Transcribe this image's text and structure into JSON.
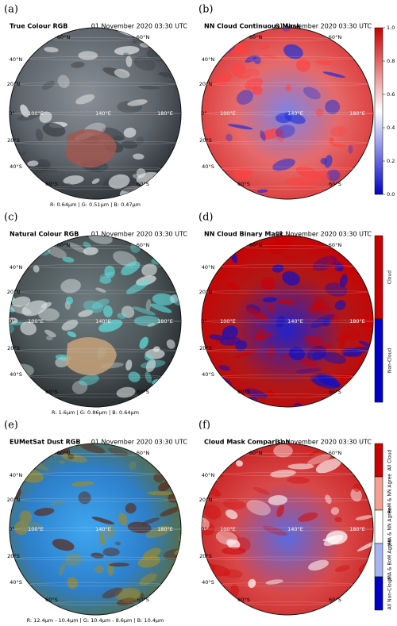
{
  "panels": [
    {
      "letter": "(a)",
      "title": "True Colour RGB",
      "date": "01 November 2020 03:30 UTC",
      "caption": "R: 0.64μm | G: 0.51μm | B: 0.47μm",
      "lat_labels": [
        "60°N",
        "60°N",
        "40°N",
        "20°N",
        "0°",
        "20°S",
        "40°S",
        "60°S",
        "60°S"
      ],
      "lon_labels": [
        "100°E",
        "140°E",
        "180°E"
      ]
    },
    {
      "letter": "(b)",
      "title": "NN Cloud Continuous Mask",
      "date": "01 November 2020 03:30 UTC",
      "lat_labels": [
        "60°N",
        "60°N",
        "40°N",
        "20°N",
        "0°",
        "20°S",
        "40°S",
        "60°S",
        "60°S"
      ],
      "lon_labels": [
        "100°E",
        "140°E",
        "180°E"
      ],
      "colorbar_ticks": [
        {
          "value": 0,
          "label": "0.0"
        },
        {
          "value": 0.2,
          "label": "0.2"
        },
        {
          "value": 0.4,
          "label": "0.4"
        },
        {
          "value": 0.6,
          "label": "0.6"
        },
        {
          "value": 0.8,
          "label": "0.8"
        },
        {
          "value": 1,
          "label": "1.0"
        }
      ]
    },
    {
      "letter": "(c)",
      "title": "Natural Colour RGB",
      "date": "01 November 2020 03:30 UTC",
      "caption": "R: 1.6μm | G: 0.86μm | B: 0.64μm",
      "lat_labels": [
        "60°N",
        "60°N",
        "40°N",
        "20°N",
        "0°",
        "20°S",
        "40°S",
        "60°S",
        "60°S"
      ],
      "lon_labels": [
        "100°E",
        "140°E",
        "180°E"
      ]
    },
    {
      "letter": "(d)",
      "title": "NN Cloud Binary Mask",
      "date": "01 November 2020 03:30 UTC",
      "lat_labels": [
        "60°N",
        "60°N",
        "40°N",
        "20°N",
        "0°",
        "20°S",
        "40°S",
        "60°S",
        "60°S"
      ],
      "lon_labels": [
        "100°E",
        "140°E",
        "180°E"
      ],
      "colorbar_classes": [
        "Cloud",
        "Non-Cloud"
      ]
    },
    {
      "letter": "(e)",
      "title": "EUMetSat Dust RGB",
      "date": "01 November 2020 03:30 UTC",
      "caption": "R: 12.4μm - 10.4μm | G: 10.4μm - 8.6μm | B: 10.4μm",
      "lat_labels": [
        "60°N",
        "60°N",
        "40°N",
        "20°N",
        "0°",
        "20°S",
        "40°S",
        "60°S",
        "60°S"
      ],
      "lon_labels": [
        "100°E",
        "140°E",
        "180°E"
      ]
    },
    {
      "letter": "(f)",
      "title": "Cloud Mask Comparison",
      "date": "01 November 2020 03:30 UTC",
      "lat_labels": [
        "60°N",
        "60°N",
        "40°N",
        "20°N",
        "0°",
        "20°S",
        "40°S",
        "60°S",
        "60°S"
      ],
      "lon_labels": [
        "100°E",
        "140°E",
        "180°E"
      ],
      "colorbar_classes": [
        "All Cloud",
        "BoM & NN Agree",
        "JMA & NN Agree",
        "JMA & BoM Agree",
        "All Non-Cloud"
      ]
    }
  ]
}
